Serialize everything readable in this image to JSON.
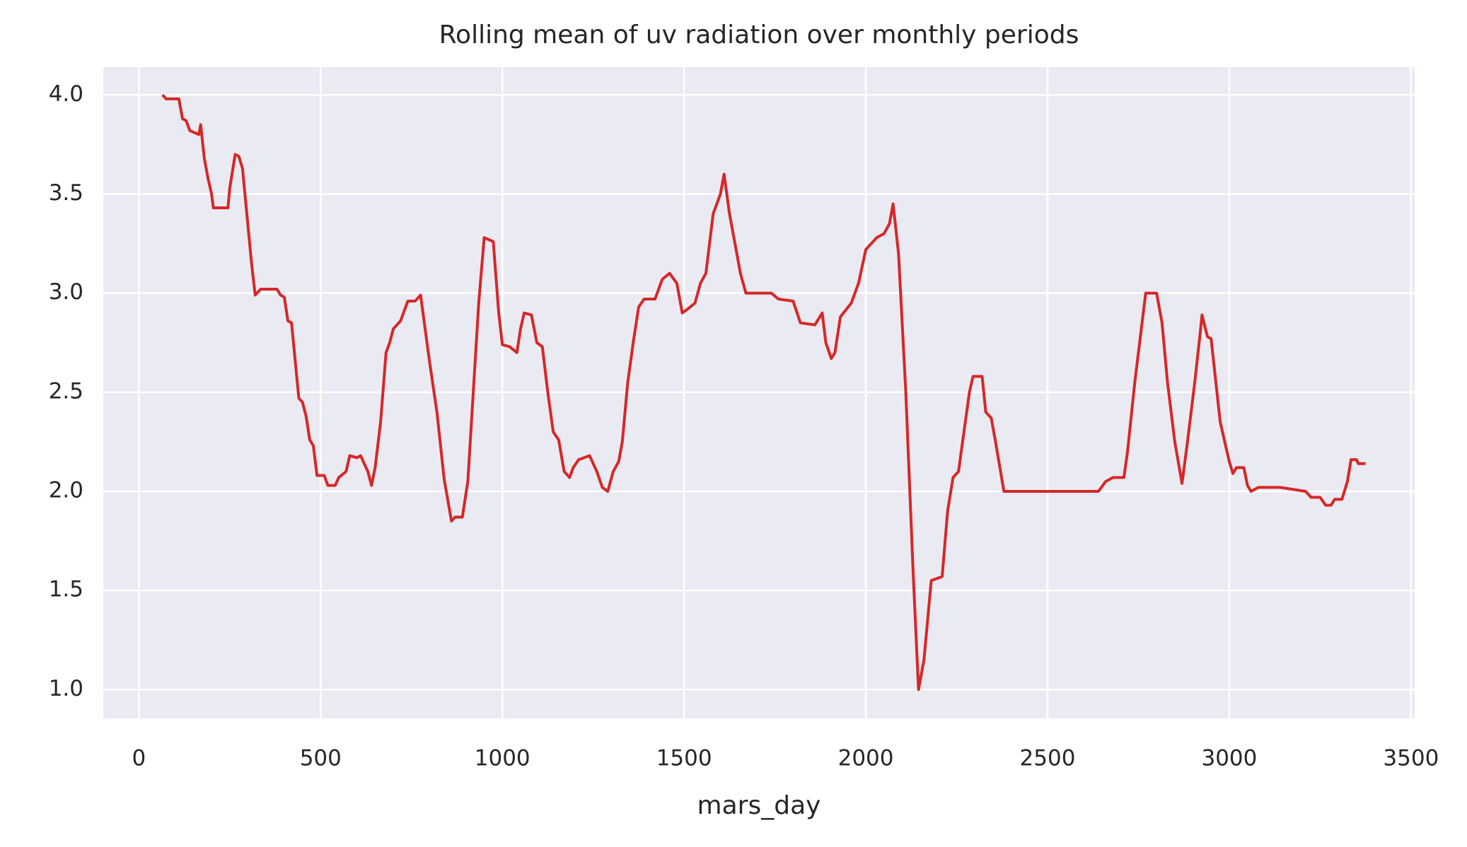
{
  "chart_data": {
    "type": "line",
    "title": "Rolling mean of uv radiation over monthly periods",
    "xlabel": "mars_day",
    "x": [
      65,
      75,
      110,
      120,
      130,
      140,
      165,
      170,
      180,
      190,
      200,
      205,
      245,
      250,
      265,
      275,
      285,
      310,
      320,
      335,
      380,
      390,
      400,
      410,
      420,
      440,
      450,
      460,
      470,
      480,
      490,
      510,
      520,
      540,
      550,
      570,
      580,
      600,
      610,
      620,
      630,
      640,
      650,
      665,
      680,
      690,
      700,
      720,
      740,
      760,
      775,
      800,
      820,
      840,
      860,
      870,
      890,
      905,
      920,
      935,
      950,
      975,
      990,
      1000,
      1020,
      1040,
      1050,
      1060,
      1080,
      1095,
      1110,
      1125,
      1140,
      1155,
      1170,
      1185,
      1195,
      1210,
      1240,
      1260,
      1275,
      1290,
      1305,
      1320,
      1330,
      1345,
      1360,
      1375,
      1390,
      1420,
      1440,
      1460,
      1480,
      1495,
      1510,
      1530,
      1545,
      1560,
      1580,
      1600,
      1610,
      1625,
      1640,
      1655,
      1670,
      1740,
      1760,
      1800,
      1820,
      1860,
      1880,
      1890,
      1905,
      1915,
      1930,
      1960,
      1980,
      2000,
      2030,
      2050,
      2065,
      2075,
      2090,
      2110,
      2130,
      2145,
      2160,
      2180,
      2210,
      2225,
      2240,
      2255,
      2270,
      2285,
      2295,
      2320,
      2330,
      2345,
      2355,
      2380,
      2640,
      2660,
      2680,
      2710,
      2720,
      2740,
      2760,
      2770,
      2800,
      2815,
      2830,
      2850,
      2870,
      2885,
      2905,
      2920,
      2925,
      2940,
      2950,
      2975,
      2990,
      3000,
      3010,
      3020,
      3040,
      3050,
      3060,
      3080,
      3140,
      3210,
      3225,
      3250,
      3265,
      3280,
      3290,
      3310,
      3325,
      3335,
      3350,
      3355,
      3375
    ],
    "series": [
      {
        "name": "uv radiation",
        "color": "#d62728",
        "values": [
          4.0,
          3.98,
          3.98,
          3.88,
          3.87,
          3.82,
          3.8,
          3.85,
          3.68,
          3.58,
          3.5,
          3.43,
          3.43,
          3.53,
          3.7,
          3.69,
          3.63,
          3.15,
          2.99,
          3.02,
          3.02,
          2.99,
          2.98,
          2.86,
          2.85,
          2.47,
          2.45,
          2.38,
          2.26,
          2.23,
          2.08,
          2.08,
          2.03,
          2.03,
          2.07,
          2.1,
          2.18,
          2.17,
          2.18,
          2.14,
          2.1,
          2.03,
          2.12,
          2.35,
          2.7,
          2.75,
          2.82,
          2.86,
          2.96,
          2.96,
          2.99,
          2.65,
          2.4,
          2.06,
          1.85,
          1.87,
          1.87,
          2.05,
          2.5,
          2.95,
          3.28,
          3.26,
          2.9,
          2.74,
          2.73,
          2.7,
          2.82,
          2.9,
          2.89,
          2.75,
          2.73,
          2.5,
          2.3,
          2.26,
          2.1,
          2.07,
          2.12,
          2.16,
          2.18,
          2.1,
          2.02,
          2.0,
          2.1,
          2.15,
          2.25,
          2.55,
          2.75,
          2.93,
          2.97,
          2.97,
          3.07,
          3.1,
          3.05,
          2.9,
          2.92,
          2.95,
          3.05,
          3.1,
          3.4,
          3.5,
          3.6,
          3.4,
          3.25,
          3.1,
          3.0,
          3.0,
          2.97,
          2.96,
          2.85,
          2.84,
          2.9,
          2.75,
          2.67,
          2.7,
          2.88,
          2.95,
          3.05,
          3.22,
          3.28,
          3.3,
          3.35,
          3.45,
          3.2,
          2.5,
          1.6,
          1.0,
          1.15,
          1.55,
          1.57,
          1.9,
          2.07,
          2.1,
          2.3,
          2.5,
          2.58,
          2.58,
          2.4,
          2.37,
          2.27,
          2.0,
          2.0,
          2.05,
          2.07,
          2.07,
          2.2,
          2.55,
          2.85,
          3.0,
          3.0,
          2.85,
          2.55,
          2.25,
          2.04,
          2.25,
          2.55,
          2.8,
          2.89,
          2.78,
          2.77,
          2.35,
          2.23,
          2.15,
          2.09,
          2.12,
          2.12,
          2.03,
          2.0,
          2.02,
          2.02,
          2.0,
          1.97,
          1.97,
          1.93,
          1.93,
          1.96,
          1.96,
          2.05,
          2.16,
          2.16,
          2.14,
          2.14
        ]
      }
    ],
    "xlim": [
      -98,
      3510
    ],
    "ylim": [
      0.855,
      4.14
    ],
    "xticks": [
      0,
      500,
      1000,
      1500,
      2000,
      2500,
      3000,
      3500
    ],
    "yticks": [
      {
        "value": 1,
        "label": "1.0"
      },
      1.5,
      {
        "value": 2,
        "label": "2.0"
      },
      2.5,
      {
        "value": 3,
        "label": "3.0"
      },
      3.5,
      {
        "value": 4,
        "label": "4.0"
      }
    ],
    "grid": true
  }
}
